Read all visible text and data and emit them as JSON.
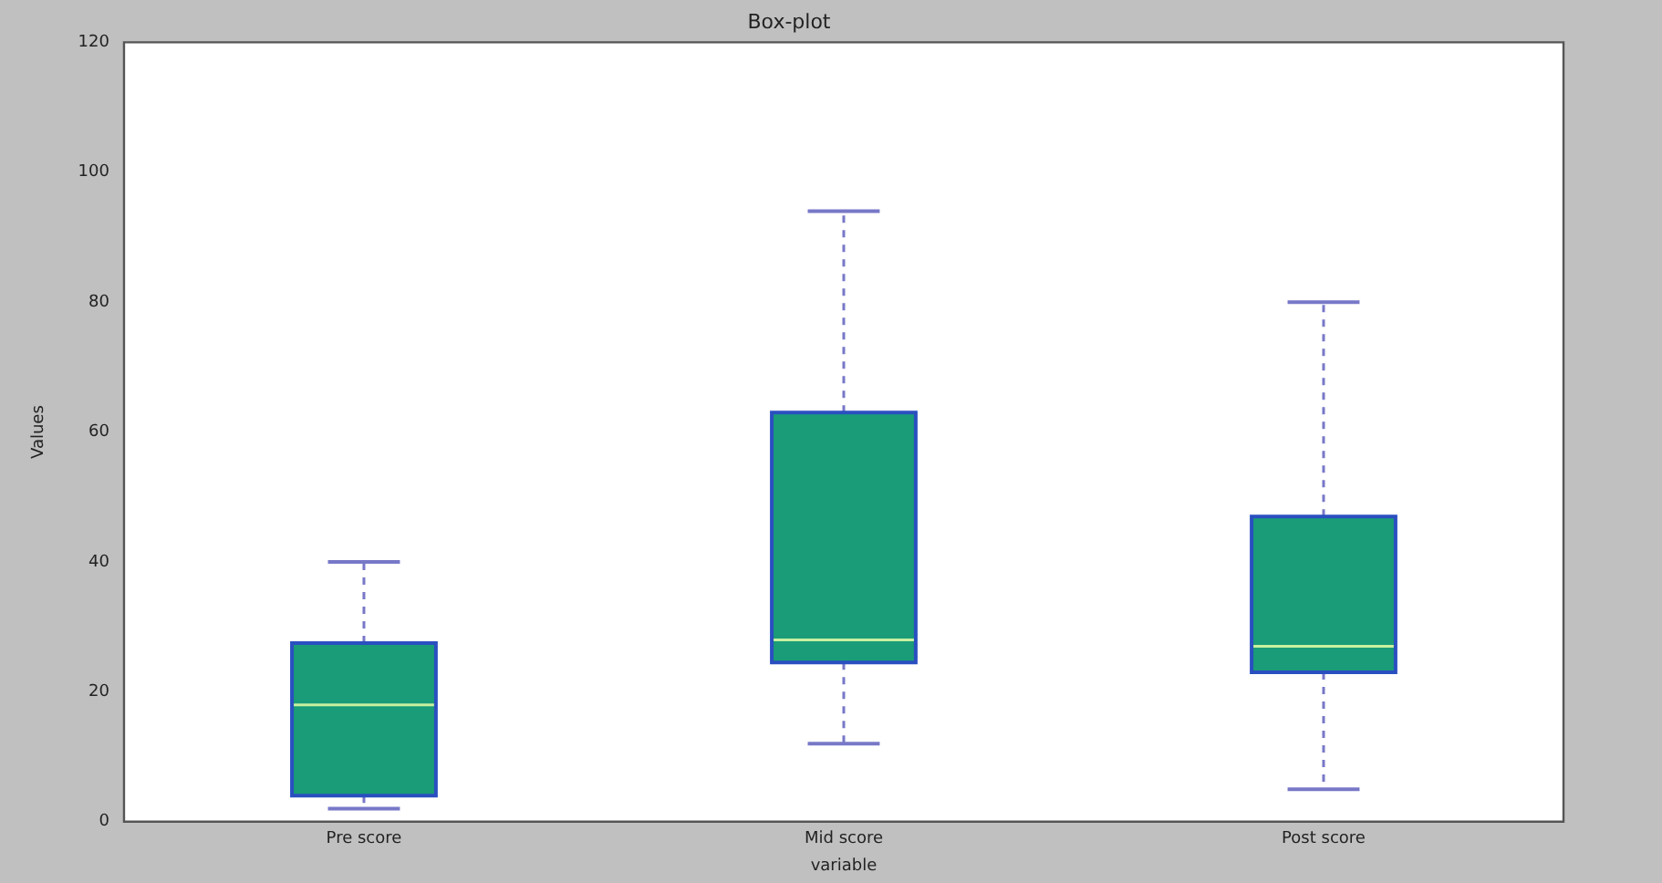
{
  "chart_data": {
    "type": "box",
    "title": "Box-plot",
    "xlabel": "variable",
    "ylabel": "Values",
    "categories": [
      "Pre score",
      "Mid score",
      "Post score"
    ],
    "boxes": [
      {
        "low": 2,
        "q1": 4,
        "median": 18,
        "q3": 27.5,
        "high": 40
      },
      {
        "low": 12,
        "q1": 24.5,
        "median": 28,
        "q3": 63,
        "high": 94
      },
      {
        "low": 5,
        "q1": 23,
        "median": 27,
        "q3": 47,
        "high": 80
      }
    ],
    "color": "#1a9c78",
    "ylim": [
      0,
      120
    ],
    "yticks": [
      0,
      20,
      40,
      60,
      80,
      100,
      120
    ],
    "grid": false,
    "legend": false
  }
}
